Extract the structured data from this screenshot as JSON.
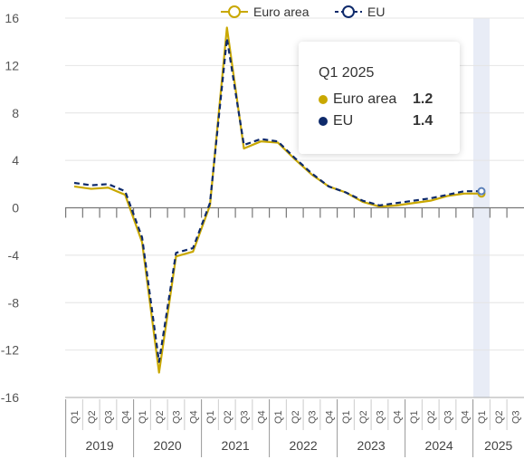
{
  "chart_data": {
    "type": "line",
    "title": "",
    "xlabel": "",
    "ylabel": "",
    "ylim": [
      -16,
      16
    ],
    "yticks": [
      "16",
      "12",
      "8",
      "4",
      "0",
      "-4",
      "-8",
      "-12",
      "-16"
    ],
    "grid": true,
    "legend_position": "top-center",
    "categories": [
      "Q1",
      "Q2",
      "Q3",
      "Q4",
      "Q1",
      "Q2",
      "Q3",
      "Q4",
      "Q1",
      "Q2",
      "Q3",
      "Q4",
      "Q1",
      "Q2",
      "Q3",
      "Q4",
      "Q1",
      "Q2",
      "Q3",
      "Q4",
      "Q1",
      "Q2",
      "Q3",
      "Q4",
      "Q1",
      "Q2",
      "Q3"
    ],
    "years": [
      {
        "label": "2019",
        "quarters": 4
      },
      {
        "label": "2020",
        "quarters": 4
      },
      {
        "label": "2021",
        "quarters": 4
      },
      {
        "label": "2022",
        "quarters": 4
      },
      {
        "label": "2023",
        "quarters": 4
      },
      {
        "label": "2024",
        "quarters": 4
      },
      {
        "label": "2025",
        "quarters": 3
      }
    ],
    "series": [
      {
        "name": "Euro area",
        "color": "#c9a800",
        "values": [
          1.8,
          1.6,
          1.7,
          1.1,
          -2.9,
          -13.9,
          -4.1,
          -3.7,
          0.2,
          15.2,
          5.0,
          5.6,
          5.5,
          4.1,
          2.8,
          1.8,
          1.3,
          0.5,
          0.1,
          0.2,
          0.4,
          0.6,
          1.0,
          1.2,
          1.2,
          null,
          null
        ]
      },
      {
        "name": "EU",
        "color": "#0e2a6b",
        "values": [
          2.1,
          1.9,
          2.0,
          1.4,
          -2.5,
          -13.0,
          -3.8,
          -3.4,
          0.4,
          14.3,
          5.3,
          5.8,
          5.6,
          4.2,
          2.9,
          1.8,
          1.3,
          0.6,
          0.2,
          0.4,
          0.6,
          0.8,
          1.1,
          1.4,
          1.4,
          null,
          null
        ]
      }
    ],
    "highlight_category_index": 24
  },
  "tooltip": {
    "title": "Q1 2025",
    "rows": [
      {
        "name": "Euro area",
        "value": "1.2",
        "color": "#c9a800"
      },
      {
        "name": "EU",
        "value": "1.4",
        "color": "#0e2a6b"
      }
    ]
  },
  "legend": [
    {
      "name": "Euro area",
      "color": "#c9a800"
    },
    {
      "name": "EU",
      "color": "#0e2a6b"
    }
  ]
}
